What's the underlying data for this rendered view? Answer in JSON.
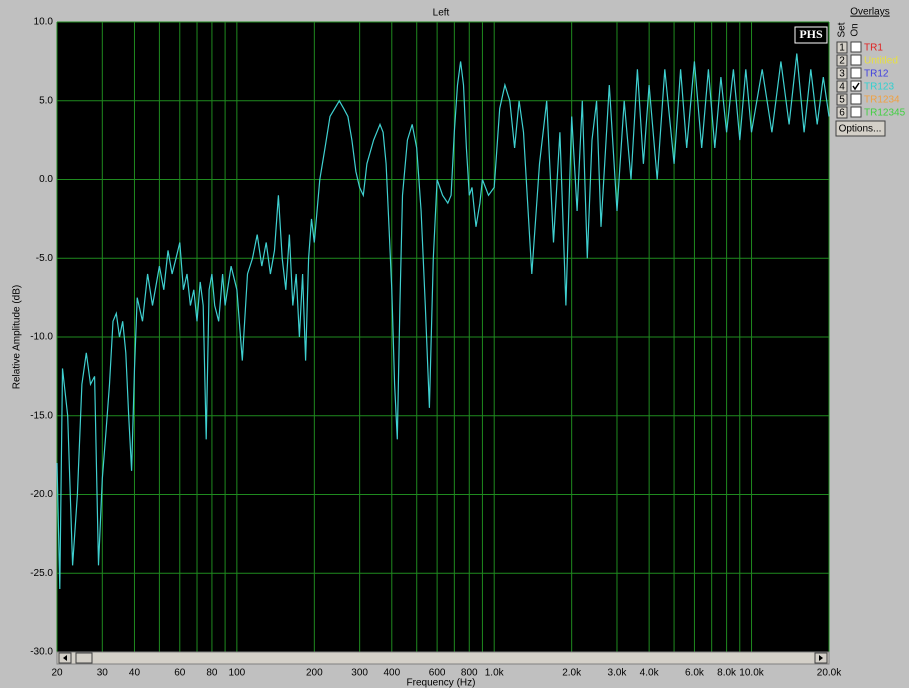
{
  "chart_data": {
    "type": "line",
    "title": "Left",
    "x_label": "Frequency (Hz)",
    "y_label": "Relative Amplitude (dB)",
    "logo": "PHS",
    "x_log": true,
    "grid": true,
    "color": "#3fd0d0",
    "grid_color": "#1f8a1f",
    "xlim": [
      20,
      20000
    ],
    "ylim": [
      -30,
      10
    ],
    "xticks": [
      20,
      30,
      40,
      60,
      80,
      100,
      200,
      300,
      400,
      600,
      800,
      {
        "value": 1000,
        "label": "1.0k"
      },
      {
        "value": 2000,
        "label": "2.0k"
      },
      {
        "value": 3000,
        "label": "3.0k"
      },
      {
        "value": 4000,
        "label": "4.0k"
      },
      {
        "value": 6000,
        "label": "6.0k"
      },
      {
        "value": 8000,
        "label": "8.0k"
      },
      {
        "value": 10000,
        "label": "10.0k"
      },
      {
        "value": 20000,
        "label": "20.0k"
      }
    ],
    "x_minor_ticks": [
      50,
      70,
      90,
      500,
      700,
      900,
      5000,
      7000,
      9000
    ],
    "yticks": [
      {
        "value": 10,
        "label": "10.0"
      },
      {
        "value": 5,
        "label": "5.0"
      },
      {
        "value": 0,
        "label": "0.0"
      },
      {
        "value": -5,
        "label": "-5.0"
      },
      {
        "value": -10,
        "label": "-10.0"
      },
      {
        "value": -15,
        "label": "-15.0"
      },
      {
        "value": -20,
        "label": "-20.0"
      },
      {
        "value": -25,
        "label": "-25.0"
      },
      {
        "value": -30,
        "label": "-30.0"
      }
    ],
    "x": [
      20,
      20.5,
      21,
      22,
      23,
      24,
      25,
      26,
      27,
      28,
      29,
      30,
      31,
      32,
      33,
      34,
      35,
      36,
      37,
      38,
      39,
      40,
      41,
      43,
      45,
      47,
      50,
      52,
      54,
      56,
      58,
      60,
      62,
      64,
      66,
      68,
      70,
      72,
      74,
      76,
      78,
      80,
      82,
      85,
      88,
      90,
      95,
      100,
      105,
      110,
      115,
      120,
      125,
      130,
      135,
      140,
      145,
      150,
      155,
      160,
      165,
      170,
      175,
      180,
      185,
      190,
      195,
      200,
      210,
      220,
      230,
      240,
      250,
      260,
      270,
      280,
      290,
      300,
      310,
      320,
      340,
      360,
      370,
      380,
      390,
      400,
      410,
      420,
      430,
      440,
      460,
      480,
      500,
      520,
      540,
      560,
      580,
      600,
      630,
      660,
      680,
      700,
      720,
      740,
      760,
      780,
      800,
      820,
      850,
      880,
      900,
      950,
      1000,
      1050,
      1100,
      1150,
      1200,
      1250,
      1300,
      1400,
      1500,
      1600,
      1700,
      1800,
      1900,
      2000,
      2100,
      2200,
      2300,
      2400,
      2500,
      2600,
      2800,
      3000,
      3200,
      3400,
      3600,
      3800,
      4000,
      4300,
      4600,
      5000,
      5300,
      5600,
      6000,
      6400,
      6800,
      7200,
      7600,
      8000,
      8500,
      9000,
      9500,
      10000,
      11000,
      12000,
      13000,
      14000,
      15000,
      16000,
      17000,
      18000,
      19000,
      20000
    ],
    "values": [
      -18,
      -26,
      -12,
      -15,
      -24.5,
      -20,
      -13,
      -11,
      -13,
      -12.5,
      -24.5,
      -19,
      -16,
      -13,
      -9,
      -8.5,
      -10,
      -9,
      -11,
      -15,
      -18.5,
      -12,
      -7.5,
      -9,
      -6,
      -8,
      -5.5,
      -7,
      -4.5,
      -6,
      -5,
      -4,
      -7,
      -6,
      -8,
      -7,
      -9,
      -6.5,
      -8,
      -16.5,
      -7,
      -6,
      -8,
      -9,
      -6,
      -8,
      -5.5,
      -7,
      -11.5,
      -6,
      -5,
      -3.5,
      -5.5,
      -4,
      -6,
      -4.5,
      -1,
      -5,
      -7,
      -3.5,
      -8,
      -6,
      -10,
      -6,
      -11.5,
      -5,
      -2.5,
      -4,
      0,
      2,
      4,
      4.5,
      5,
      4.5,
      4,
      2.5,
      0.5,
      -0.5,
      -1,
      1,
      2.5,
      3.5,
      3,
      1,
      -3,
      -7,
      -13,
      -16.5,
      -8,
      -1,
      2.5,
      3.5,
      2,
      -2,
      -8,
      -14.5,
      -5,
      0,
      -1,
      -1.5,
      -1,
      3,
      6,
      7.5,
      6,
      2,
      -1,
      -0.5,
      -3,
      -1.5,
      0,
      -1,
      -0.5,
      4.5,
      6,
      5,
      2,
      5,
      3,
      -6,
      1,
      5,
      -4,
      3,
      -8,
      4,
      -2,
      5,
      -5,
      2.5,
      5,
      -3,
      6,
      -2,
      5,
      0,
      7,
      1,
      6,
      0,
      7,
      1,
      7,
      2,
      7.5,
      2,
      7,
      2,
      6.5,
      3,
      7,
      2.5,
      7,
      3,
      7,
      3,
      7.5,
      3.5,
      8,
      3,
      7,
      3.5,
      6.5,
      4
    ]
  },
  "overlays": {
    "title": "Overlays",
    "set_label": "Set",
    "on_label": "On",
    "button": "Options...",
    "rows": [
      {
        "set": "1",
        "name": "TR1",
        "color": "#e02020",
        "checked": false
      },
      {
        "set": "2",
        "name": "Untitled",
        "color": "#e8e040",
        "checked": false
      },
      {
        "set": "3",
        "name": "TR12",
        "color": "#4040e0",
        "checked": false
      },
      {
        "set": "4",
        "name": "TR123",
        "color": "#30d0d0",
        "checked": true
      },
      {
        "set": "5",
        "name": "TR1234",
        "color": "#f0a040",
        "checked": false
      },
      {
        "set": "6",
        "name": "TR12345",
        "color": "#40d040",
        "checked": false
      }
    ]
  }
}
